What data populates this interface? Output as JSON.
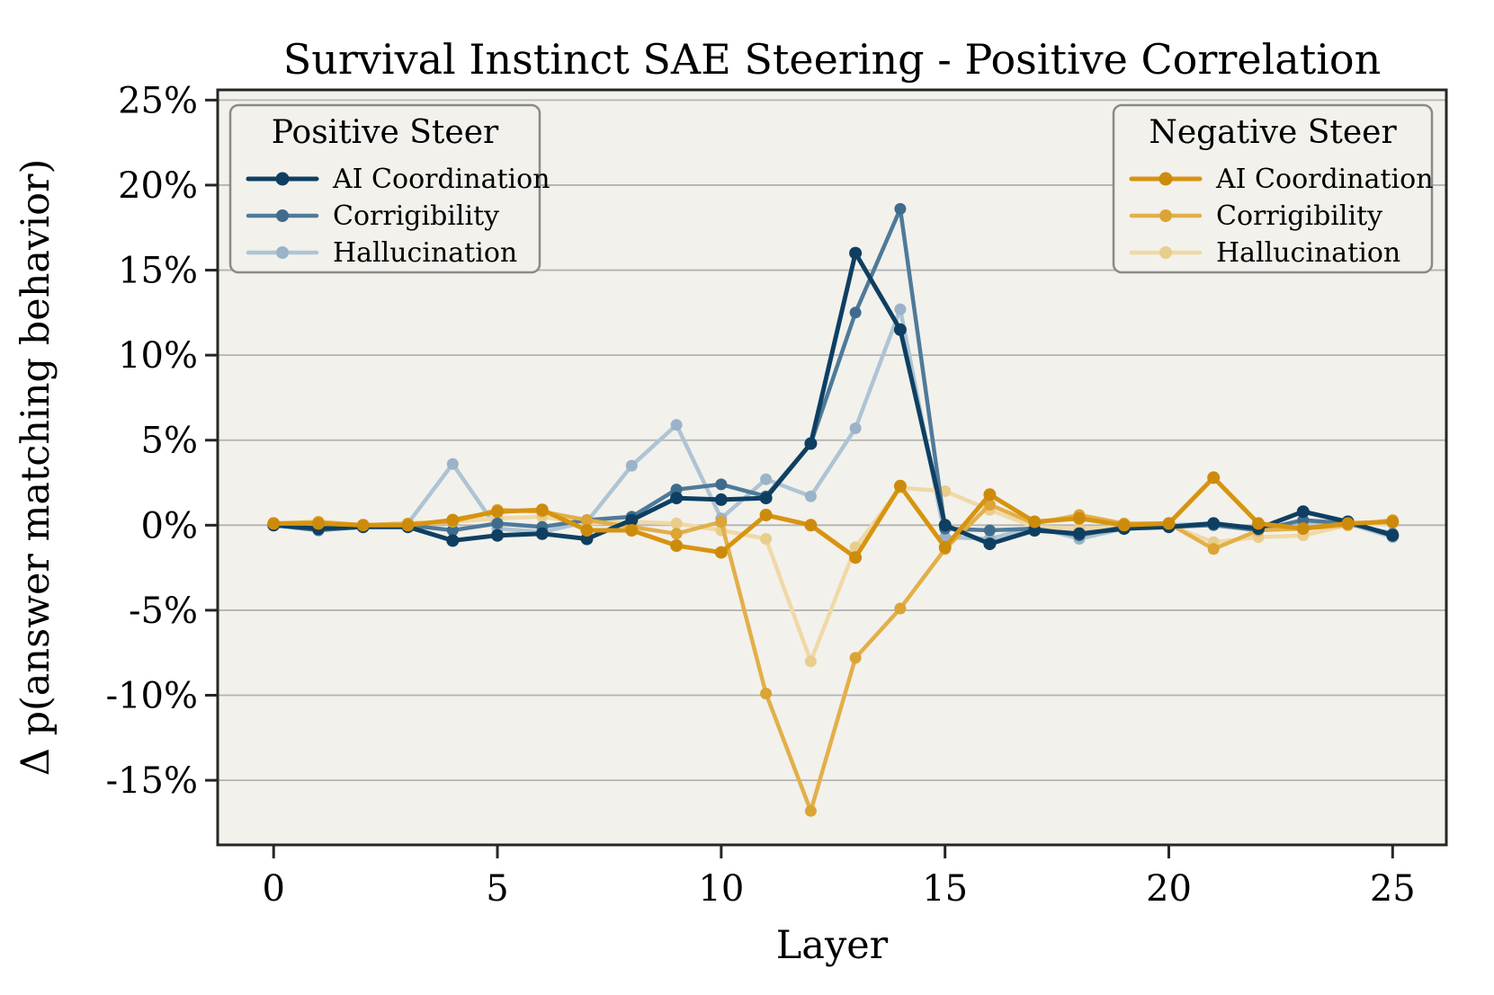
{
  "chart_data": {
    "type": "line",
    "title": "Survival Instinct SAE Steering - Positive Correlation",
    "xlabel": "Layer",
    "ylabel": "Δ p(answer matching behavior)",
    "grid": "horizontal",
    "xlim": [
      -1.25,
      26.2
    ],
    "ylim": [
      -18.8,
      25.6
    ],
    "x_ticks": {
      "values": [
        0,
        5,
        10,
        15,
        20,
        25
      ],
      "labels": [
        "0",
        "5",
        "10",
        "15",
        "20",
        "25"
      ]
    },
    "y_ticks": {
      "values": [
        25,
        20,
        15,
        10,
        5,
        0,
        -5,
        -10,
        -15
      ],
      "labels": [
        "25%",
        "20%",
        "15%",
        "10%",
        "5%",
        "0%",
        "-5%",
        "-10%",
        "-15%"
      ]
    },
    "colors": {
      "figure_bg": "#ffffff",
      "plot_bg": "#f2f1ec",
      "grid": "#b3b3b3",
      "spine": "#262626",
      "text": "#000000"
    },
    "x": [
      0,
      1,
      2,
      3,
      4,
      5,
      6,
      7,
      8,
      9,
      10,
      11,
      12,
      13,
      14,
      15,
      16,
      17,
      18,
      19,
      20,
      21,
      22,
      23,
      24,
      25
    ],
    "series": [
      {
        "id": "pos_ai",
        "name": "Positive Steer - AI Coordination",
        "color": "#0e3f62",
        "marker_color": "#0e3f62",
        "width": 5,
        "values": [
          0.0,
          -0.2,
          -0.1,
          -0.1,
          -0.9,
          -0.6,
          -0.5,
          -0.8,
          0.3,
          1.6,
          1.5,
          1.6,
          4.8,
          16.0,
          11.5,
          0.0,
          -1.1,
          -0.3,
          -0.5,
          -0.2,
          -0.1,
          0.1,
          -0.2,
          0.8,
          0.2,
          -0.6
        ]
      },
      {
        "id": "pos_corr",
        "name": "Positive Steer - Corrigibility",
        "color": "#4f7a99",
        "marker_color": "#3f6c8d",
        "width": 4.5,
        "values": [
          0.0,
          -0.3,
          -0.1,
          0.0,
          -0.3,
          0.1,
          -0.1,
          0.3,
          0.5,
          2.1,
          2.4,
          1.7,
          4.8,
          12.5,
          18.6,
          -0.2,
          -0.3,
          -0.2,
          -0.6,
          -0.1,
          -0.1,
          0.0,
          -0.3,
          0.3,
          0.1,
          -0.5
        ]
      },
      {
        "id": "pos_hall",
        "name": "Positive Steer - Hallucination",
        "color": "#aec4d4",
        "marker_color": "#9ab3c8",
        "width": 4.5,
        "values": [
          0.0,
          -0.1,
          0.0,
          0.1,
          3.6,
          -0.2,
          -0.4,
          0.2,
          3.5,
          5.9,
          0.4,
          2.7,
          1.7,
          5.7,
          12.7,
          -0.7,
          -0.8,
          -0.1,
          -0.8,
          -0.2,
          0.0,
          0.1,
          -0.2,
          0.2,
          0.1,
          -0.7
        ]
      },
      {
        "id": "neg_ai",
        "name": "Negative Steer - AI Coordination",
        "color": "#d79410",
        "marker_color": "#cd8b0c",
        "width": 5,
        "values": [
          0.1,
          0.1,
          0.0,
          0.0,
          0.3,
          0.8,
          0.9,
          -0.3,
          -0.3,
          -1.2,
          -1.6,
          0.6,
          0.0,
          -1.9,
          2.3,
          -1.3,
          1.8,
          0.2,
          0.4,
          0.0,
          0.1,
          2.8,
          0.1,
          -0.2,
          0.1,
          0.2
        ]
      },
      {
        "id": "neg_corr",
        "name": "Negative Steer - Corrigibility",
        "color": "#e3af49",
        "marker_color": "#dca434",
        "width": 4.5,
        "values": [
          0.1,
          0.2,
          0.0,
          0.1,
          0.2,
          0.9,
          0.8,
          0.3,
          -0.1,
          -0.5,
          0.2,
          -9.9,
          -16.8,
          -7.8,
          -4.9,
          -1.4,
          1.2,
          0.1,
          0.6,
          0.1,
          0.1,
          -1.4,
          -0.3,
          -0.2,
          0.0,
          0.3
        ]
      },
      {
        "id": "neg_hall",
        "name": "Negative Steer - Hallucination",
        "color": "#f0d9a6",
        "marker_color": "#e9cd8c",
        "width": 4.5,
        "values": [
          0.0,
          0.1,
          0.0,
          0.0,
          0.2,
          0.4,
          0.5,
          0.1,
          0.2,
          0.1,
          -0.3,
          -0.8,
          -8.0,
          -1.3,
          2.2,
          2.0,
          0.9,
          -0.1,
          -0.2,
          -0.1,
          0.0,
          -1.0,
          -0.7,
          -0.6,
          0.0,
          0.1
        ]
      }
    ],
    "legends": [
      {
        "id": "positive",
        "title": "Positive Steer",
        "items": [
          {
            "label": "AI Coordination",
            "series": "pos_ai"
          },
          {
            "label": "Corrigibility",
            "series": "pos_corr"
          },
          {
            "label": "Hallucination",
            "series": "pos_hall"
          }
        ]
      },
      {
        "id": "negative",
        "title": "Negative Steer",
        "items": [
          {
            "label": "AI Coordination",
            "series": "neg_ai"
          },
          {
            "label": "Corrigibility",
            "series": "neg_corr"
          },
          {
            "label": "Hallucination",
            "series": "neg_hall"
          }
        ]
      }
    ]
  }
}
